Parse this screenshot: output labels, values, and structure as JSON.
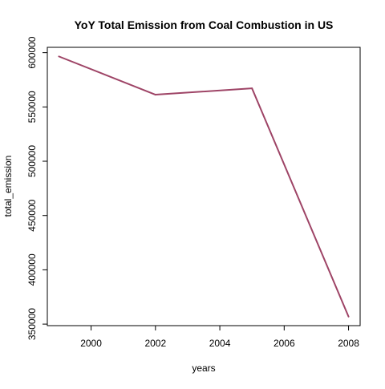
{
  "chart_data": {
    "type": "line",
    "title": "YoY Total Emission from Coal Combustion in US",
    "xlabel": "years",
    "ylabel": "total_emission",
    "x": [
      1999,
      2002,
      2005,
      2008
    ],
    "series": [
      {
        "values": [
          596500,
          561300,
          567100,
          356900
        ]
      }
    ],
    "xticks": [
      2000,
      2002,
      2004,
      2006,
      2008
    ],
    "yticks": [
      350000,
      400000,
      450000,
      500000,
      550000,
      600000
    ],
    "xlim": [
      1998.64,
      2008.36
    ],
    "ylim": [
      348600,
      604900
    ],
    "grid": false,
    "line_color": "#9e4466"
  }
}
